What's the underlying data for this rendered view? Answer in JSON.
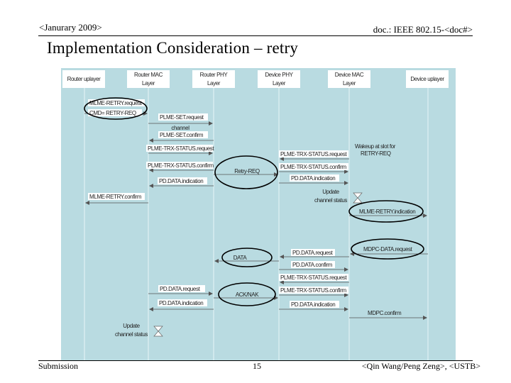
{
  "header": {
    "left": "<Janurary 2009>",
    "right": "doc.: IEEE 802.15-<doc#>",
    "title": "Implementation Consideration – retry"
  },
  "footer": {
    "left": "Submission",
    "center": "15",
    "right": "<Qin Wang/Peng Zeng>, <USTB>"
  },
  "diagram": {
    "lanes": [
      {
        "id": "router-upper",
        "label": [
          "Router uplayer"
        ]
      },
      {
        "id": "router-mac",
        "label": [
          "Router MAC",
          "Layer"
        ]
      },
      {
        "id": "router-phy",
        "label": [
          "Router PHY",
          "Layer"
        ]
      },
      {
        "id": "device-phy",
        "label": [
          "Device PHY",
          "Layer"
        ]
      },
      {
        "id": "device-mac",
        "label": [
          "Device MAC",
          "Layer"
        ]
      },
      {
        "id": "device-upper",
        "label": [
          "Device uplayer"
        ]
      }
    ],
    "messages": {
      "mlme_retry_request": "MLME-RETRY.request",
      "cmd_retry_req": "CMD= RETRY-REQ",
      "plme_set_request": "PLME-SET.request",
      "channel": "channel",
      "plme_set_confirm": "PLME-SET.confirm",
      "plme_trx_request_r": "PLME-TRX-STATUS.request",
      "plme_trx_confirm_r": "PLME-TRX-STATUS.confirm",
      "retry_req": "Retry-REQ",
      "pd_data_indication_r": "PD.DATA.indication",
      "mlme_retry_confirm": "MLME-RETRY.confirm",
      "wakeup_1": "Wakeup at slot for",
      "wakeup_2": "RETRY-REQ",
      "plme_trx_request_d": "PLME-TRX-STATUS.request",
      "plme_trx_confirm_d": "PLME-TRX-STATUS.confirm",
      "pd_data_indication_d": "PD.DATA.indication",
      "update_1": "Update",
      "update_2": "channel status",
      "mlme_retry_indication": "MLME-RETRY.indication",
      "mdpc_data_request": "MDPC-DATA.request",
      "data": "DATA",
      "pd_data_request_d": "PD.DATA.request",
      "pd_data_confirm_d": "PD.DATA.confirm",
      "plme_trx_request_d2": "PLME-TRX-STATUS.request",
      "plme_trx_confirm_d2": "PLME-TRX-STATUS.confirm",
      "pd_data_request_r": "PD.DATA.request",
      "ack_nak": "ACK/NAK",
      "pd_data_indication_r2": "PD.DATA.indication",
      "pd_data_indication_d2": "PD.DATA.indication",
      "mdpc_confirm": "MDPC.confirm",
      "update_r_1": "Update",
      "update_r_2": "channel status"
    }
  }
}
